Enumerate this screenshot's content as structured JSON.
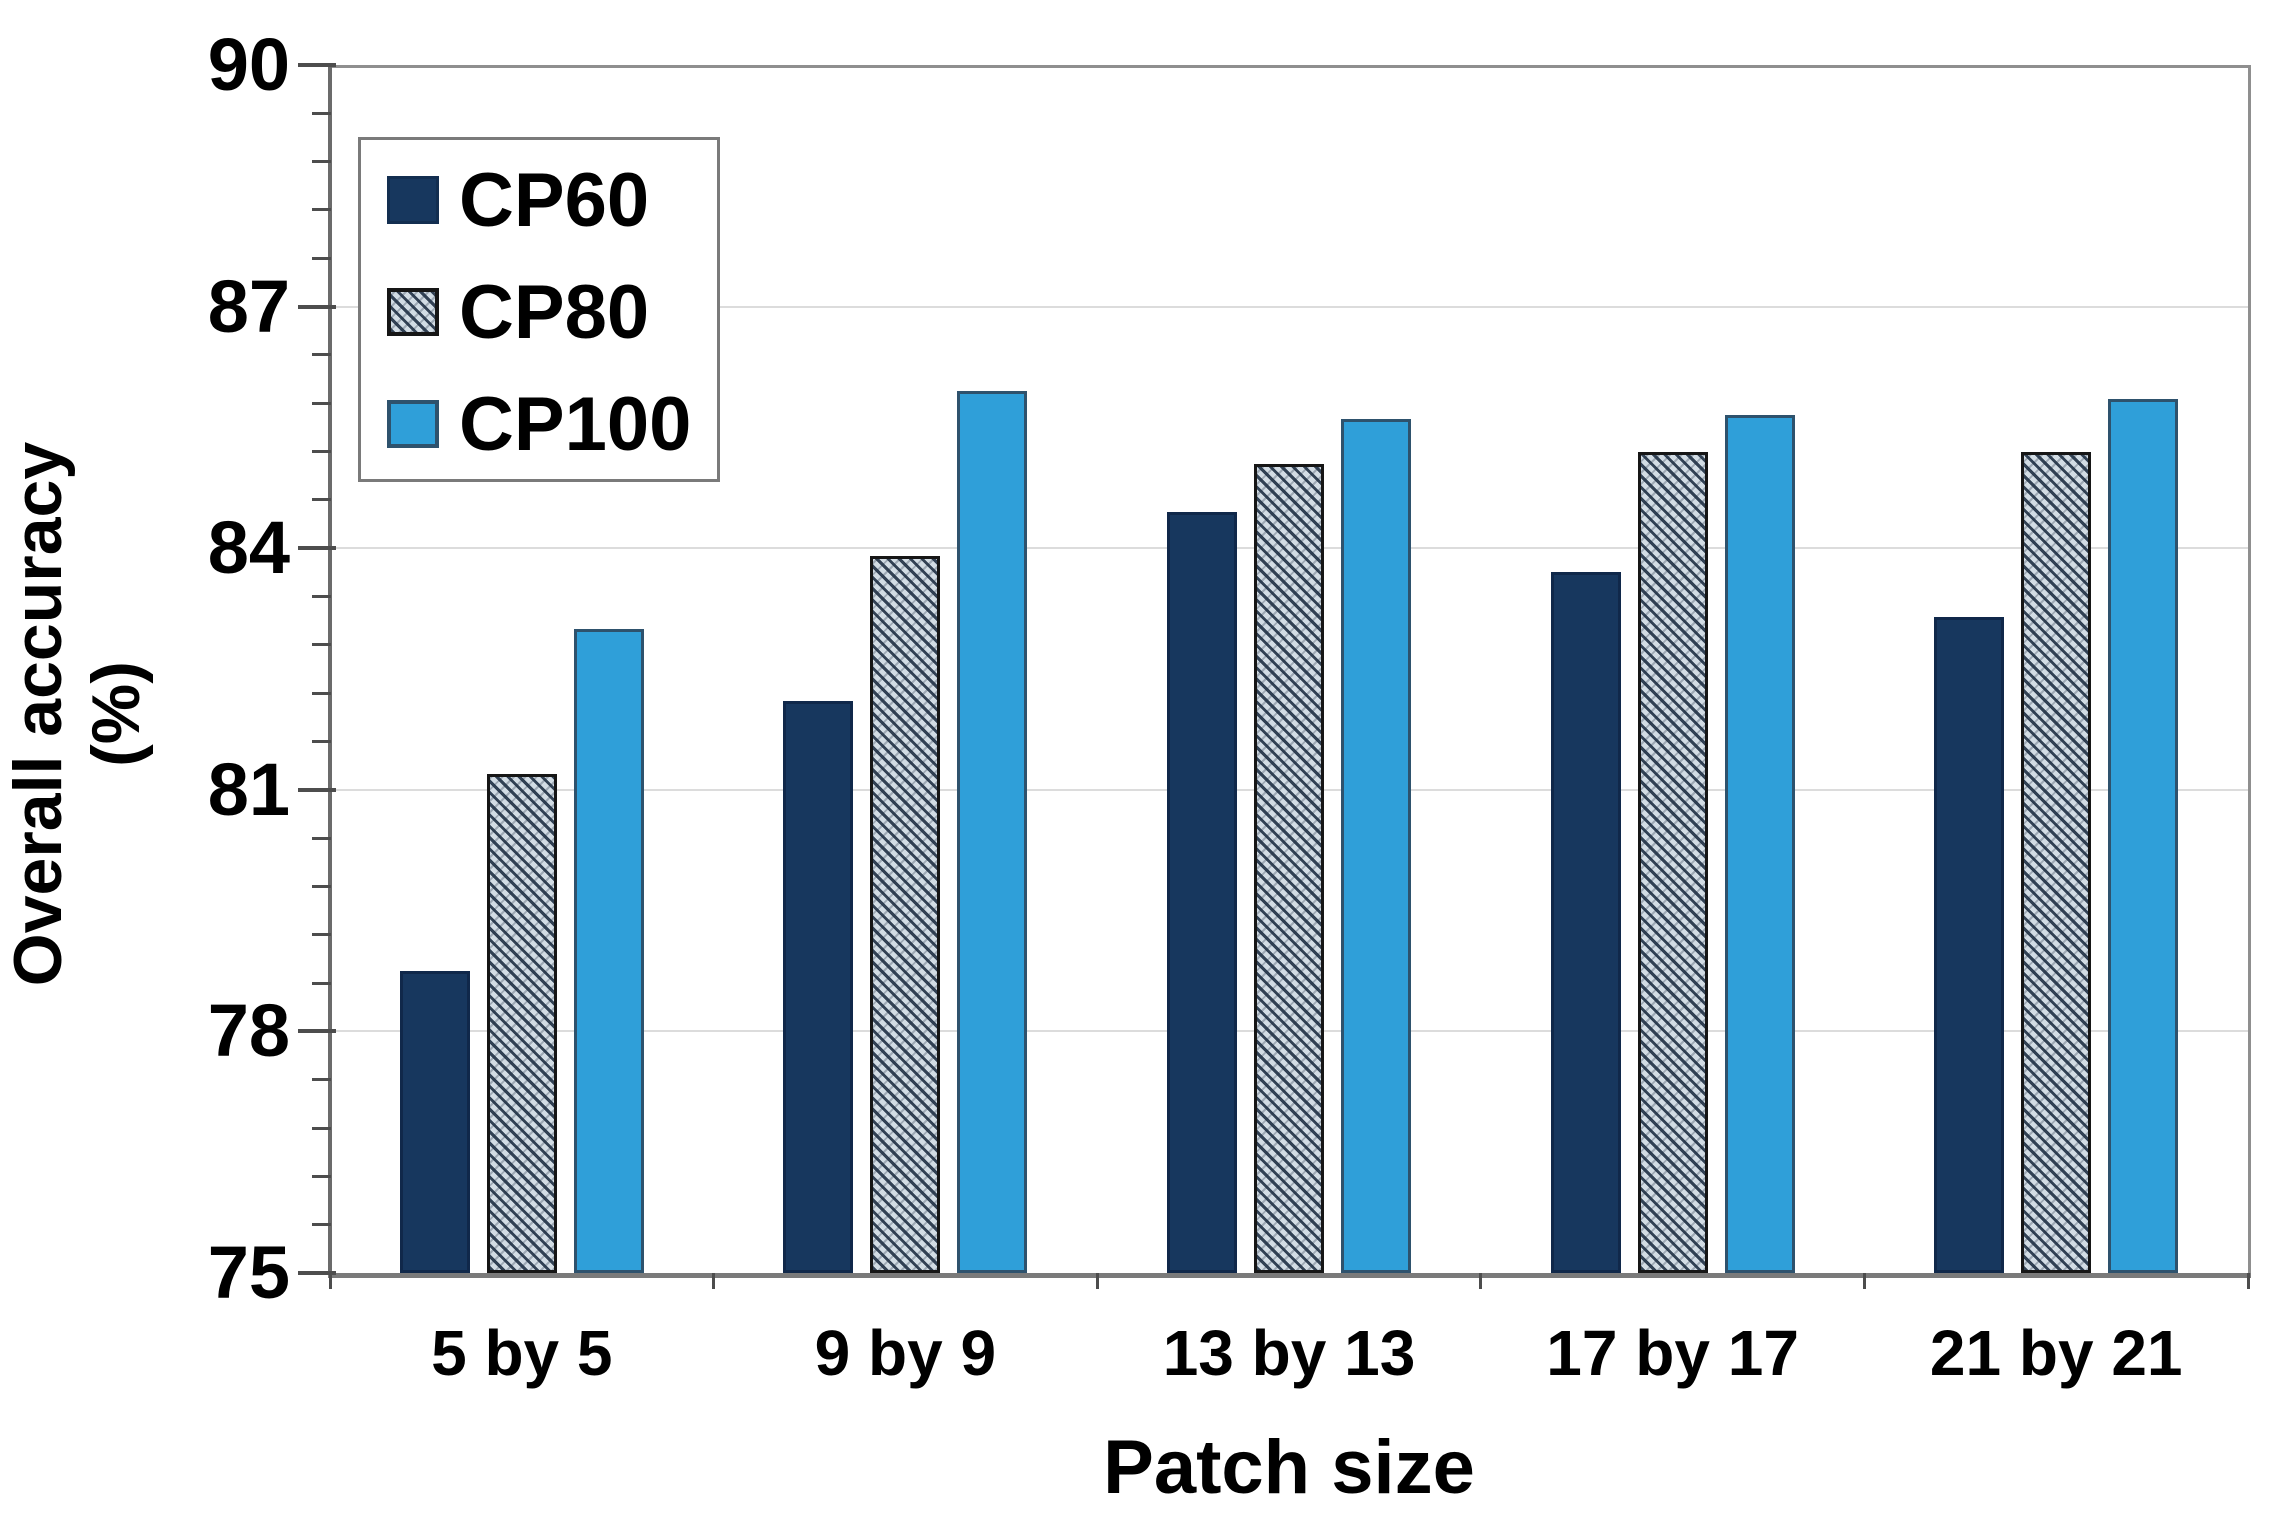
{
  "chart_data": {
    "type": "bar",
    "title": "",
    "categories": [
      "5 by 5",
      "9 by 9",
      "13 by 13",
      "17 by 17",
      "21 by 21"
    ],
    "series": [
      {
        "name": "CP60",
        "pattern": "solid",
        "color": "#17375e",
        "border": "#10284a",
        "values": [
          78.75,
          82.1,
          84.45,
          83.7,
          83.15
        ]
      },
      {
        "name": "CP80",
        "pattern": "diagonal-hatch",
        "color": "#d2dce4",
        "hatch_color": "#243448",
        "border": "#161616",
        "values": [
          81.2,
          83.9,
          85.05,
          85.2,
          85.2
        ]
      },
      {
        "name": "CP100",
        "pattern": "solid",
        "color": "#2f9fd9",
        "border": "#2e526d",
        "values": [
          83.0,
          85.95,
          85.6,
          85.65,
          85.85
        ]
      }
    ],
    "xlabel": "Patch size",
    "ylabel": "Overall accuracy (%)",
    "ylim": [
      75,
      90
    ],
    "yticks": [
      75,
      78,
      81,
      84,
      87,
      90
    ],
    "minor_tick_step": 0.6,
    "grid": "horizontal-major-only",
    "gridline_color": "#dcdcdc",
    "legend_position": "upper-left-inside",
    "legend_labels": [
      "CP60",
      "CP80",
      "CP100"
    ]
  }
}
